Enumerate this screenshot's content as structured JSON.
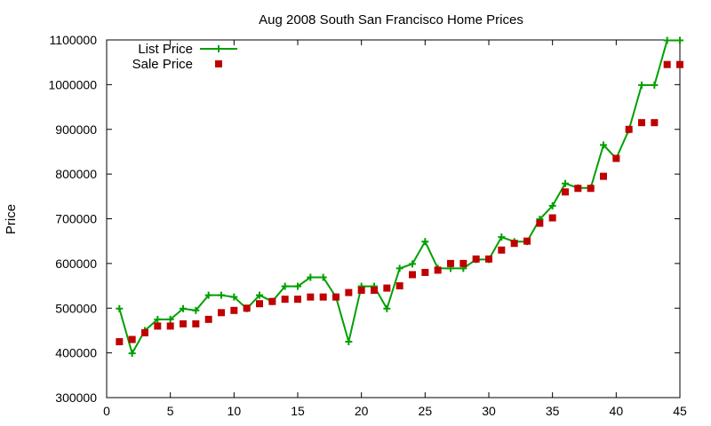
{
  "chart_data": {
    "type": "line",
    "title": "Aug 2008 South San Francisco Home Prices",
    "xlabel": "",
    "ylabel": "Price",
    "xlim": [
      0,
      45
    ],
    "ylim": [
      300000,
      1100000
    ],
    "xticks": [
      0,
      5,
      10,
      15,
      20,
      25,
      30,
      35,
      40,
      45
    ],
    "yticks": [
      300000,
      400000,
      500000,
      600000,
      700000,
      800000,
      900000,
      1000000,
      1100000
    ],
    "grid": false,
    "legend_position": "top-left",
    "x": [
      1,
      2,
      3,
      4,
      5,
      6,
      7,
      8,
      9,
      10,
      11,
      12,
      13,
      14,
      15,
      16,
      17,
      18,
      19,
      20,
      21,
      22,
      23,
      24,
      25,
      26,
      27,
      28,
      29,
      30,
      31,
      32,
      33,
      34,
      35,
      36,
      37,
      38,
      39,
      40,
      41,
      42,
      43,
      44,
      45
    ],
    "series": [
      {
        "name": "List Price",
        "style": "line-points",
        "color": "#00a000",
        "values": [
          499000,
          399000,
          450000,
          475000,
          475000,
          499000,
          495000,
          529000,
          529000,
          525000,
          499000,
          529000,
          515000,
          549000,
          549000,
          569000,
          569000,
          525000,
          425000,
          549000,
          549000,
          499000,
          589000,
          599000,
          649000,
          589000,
          589000,
          589000,
          609000,
          609000,
          659000,
          649000,
          649000,
          699000,
          729000,
          779000,
          769000,
          769000,
          865000,
          835000,
          899000,
          999000,
          999000,
          1099000,
          1099000
        ]
      },
      {
        "name": "Sale Price",
        "style": "points",
        "color": "#c00000",
        "values": [
          425000,
          430000,
          445000,
          460000,
          460000,
          465000,
          465000,
          475000,
          490000,
          495000,
          500000,
          510000,
          515000,
          520000,
          520000,
          525000,
          525000,
          525000,
          535000,
          540000,
          540000,
          545000,
          550000,
          575000,
          580000,
          585000,
          600000,
          600000,
          610000,
          610000,
          630000,
          645000,
          650000,
          690000,
          702000,
          760000,
          768000,
          768000,
          795000,
          835000,
          900000,
          915000,
          915000,
          1045000,
          1045000
        ]
      }
    ]
  }
}
